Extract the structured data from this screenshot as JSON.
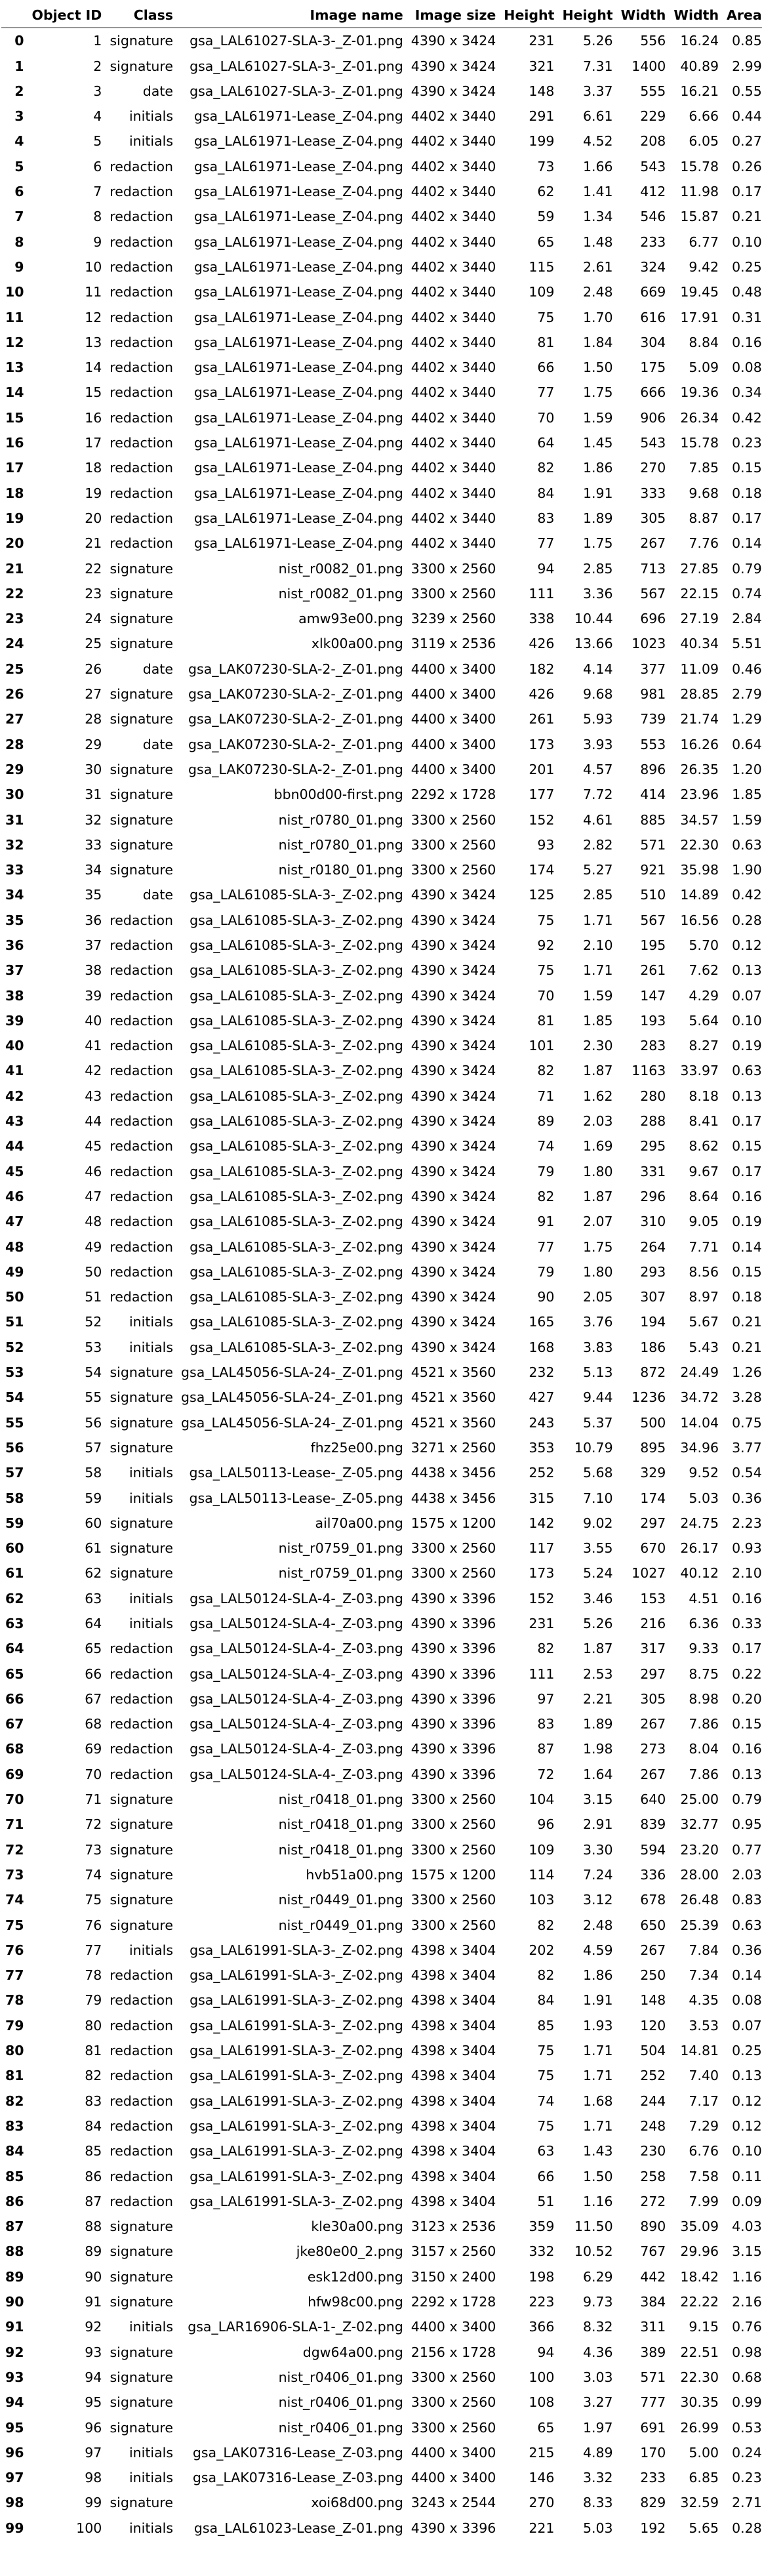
{
  "columns": [
    "Object ID",
    "Class",
    "Image name",
    "Image size",
    "Height",
    "Height",
    "Width",
    "Width",
    "Area"
  ],
  "rows": [
    [
      "0",
      "1",
      "signature",
      "gsa_LAL61027-SLA-3-_Z-01.png",
      "4390 x 3424",
      "231",
      "5.26",
      "556",
      "16.24",
      "0.85"
    ],
    [
      "1",
      "2",
      "signature",
      "gsa_LAL61027-SLA-3-_Z-01.png",
      "4390 x 3424",
      "321",
      "7.31",
      "1400",
      "40.89",
      "2.99"
    ],
    [
      "2",
      "3",
      "date",
      "gsa_LAL61027-SLA-3-_Z-01.png",
      "4390 x 3424",
      "148",
      "3.37",
      "555",
      "16.21",
      "0.55"
    ],
    [
      "3",
      "4",
      "initials",
      "gsa_LAL61971-Lease_Z-04.png",
      "4402 x 3440",
      "291",
      "6.61",
      "229",
      "6.66",
      "0.44"
    ],
    [
      "4",
      "5",
      "initials",
      "gsa_LAL61971-Lease_Z-04.png",
      "4402 x 3440",
      "199",
      "4.52",
      "208",
      "6.05",
      "0.27"
    ],
    [
      "5",
      "6",
      "redaction",
      "gsa_LAL61971-Lease_Z-04.png",
      "4402 x 3440",
      "73",
      "1.66",
      "543",
      "15.78",
      "0.26"
    ],
    [
      "6",
      "7",
      "redaction",
      "gsa_LAL61971-Lease_Z-04.png",
      "4402 x 3440",
      "62",
      "1.41",
      "412",
      "11.98",
      "0.17"
    ],
    [
      "7",
      "8",
      "redaction",
      "gsa_LAL61971-Lease_Z-04.png",
      "4402 x 3440",
      "59",
      "1.34",
      "546",
      "15.87",
      "0.21"
    ],
    [
      "8",
      "9",
      "redaction",
      "gsa_LAL61971-Lease_Z-04.png",
      "4402 x 3440",
      "65",
      "1.48",
      "233",
      "6.77",
      "0.10"
    ],
    [
      "9",
      "10",
      "redaction",
      "gsa_LAL61971-Lease_Z-04.png",
      "4402 x 3440",
      "115",
      "2.61",
      "324",
      "9.42",
      "0.25"
    ],
    [
      "10",
      "11",
      "redaction",
      "gsa_LAL61971-Lease_Z-04.png",
      "4402 x 3440",
      "109",
      "2.48",
      "669",
      "19.45",
      "0.48"
    ],
    [
      "11",
      "12",
      "redaction",
      "gsa_LAL61971-Lease_Z-04.png",
      "4402 x 3440",
      "75",
      "1.70",
      "616",
      "17.91",
      "0.31"
    ],
    [
      "12",
      "13",
      "redaction",
      "gsa_LAL61971-Lease_Z-04.png",
      "4402 x 3440",
      "81",
      "1.84",
      "304",
      "8.84",
      "0.16"
    ],
    [
      "13",
      "14",
      "redaction",
      "gsa_LAL61971-Lease_Z-04.png",
      "4402 x 3440",
      "66",
      "1.50",
      "175",
      "5.09",
      "0.08"
    ],
    [
      "14",
      "15",
      "redaction",
      "gsa_LAL61971-Lease_Z-04.png",
      "4402 x 3440",
      "77",
      "1.75",
      "666",
      "19.36",
      "0.34"
    ],
    [
      "15",
      "16",
      "redaction",
      "gsa_LAL61971-Lease_Z-04.png",
      "4402 x 3440",
      "70",
      "1.59",
      "906",
      "26.34",
      "0.42"
    ],
    [
      "16",
      "17",
      "redaction",
      "gsa_LAL61971-Lease_Z-04.png",
      "4402 x 3440",
      "64",
      "1.45",
      "543",
      "15.78",
      "0.23"
    ],
    [
      "17",
      "18",
      "redaction",
      "gsa_LAL61971-Lease_Z-04.png",
      "4402 x 3440",
      "82",
      "1.86",
      "270",
      "7.85",
      "0.15"
    ],
    [
      "18",
      "19",
      "redaction",
      "gsa_LAL61971-Lease_Z-04.png",
      "4402 x 3440",
      "84",
      "1.91",
      "333",
      "9.68",
      "0.18"
    ],
    [
      "19",
      "20",
      "redaction",
      "gsa_LAL61971-Lease_Z-04.png",
      "4402 x 3440",
      "83",
      "1.89",
      "305",
      "8.87",
      "0.17"
    ],
    [
      "20",
      "21",
      "redaction",
      "gsa_LAL61971-Lease_Z-04.png",
      "4402 x 3440",
      "77",
      "1.75",
      "267",
      "7.76",
      "0.14"
    ],
    [
      "21",
      "22",
      "signature",
      "nist_r0082_01.png",
      "3300 x 2560",
      "94",
      "2.85",
      "713",
      "27.85",
      "0.79"
    ],
    [
      "22",
      "23",
      "signature",
      "nist_r0082_01.png",
      "3300 x 2560",
      "111",
      "3.36",
      "567",
      "22.15",
      "0.74"
    ],
    [
      "23",
      "24",
      "signature",
      "amw93e00.png",
      "3239 x 2560",
      "338",
      "10.44",
      "696",
      "27.19",
      "2.84"
    ],
    [
      "24",
      "25",
      "signature",
      "xlk00a00.png",
      "3119 x 2536",
      "426",
      "13.66",
      "1023",
      "40.34",
      "5.51"
    ],
    [
      "25",
      "26",
      "date",
      "gsa_LAK07230-SLA-2-_Z-01.png",
      "4400 x 3400",
      "182",
      "4.14",
      "377",
      "11.09",
      "0.46"
    ],
    [
      "26",
      "27",
      "signature",
      "gsa_LAK07230-SLA-2-_Z-01.png",
      "4400 x 3400",
      "426",
      "9.68",
      "981",
      "28.85",
      "2.79"
    ],
    [
      "27",
      "28",
      "signature",
      "gsa_LAK07230-SLA-2-_Z-01.png",
      "4400 x 3400",
      "261",
      "5.93",
      "739",
      "21.74",
      "1.29"
    ],
    [
      "28",
      "29",
      "date",
      "gsa_LAK07230-SLA-2-_Z-01.png",
      "4400 x 3400",
      "173",
      "3.93",
      "553",
      "16.26",
      "0.64"
    ],
    [
      "29",
      "30",
      "signature",
      "gsa_LAK07230-SLA-2-_Z-01.png",
      "4400 x 3400",
      "201",
      "4.57",
      "896",
      "26.35",
      "1.20"
    ],
    [
      "30",
      "31",
      "signature",
      "bbn00d00-first.png",
      "2292 x 1728",
      "177",
      "7.72",
      "414",
      "23.96",
      "1.85"
    ],
    [
      "31",
      "32",
      "signature",
      "nist_r0780_01.png",
      "3300 x 2560",
      "152",
      "4.61",
      "885",
      "34.57",
      "1.59"
    ],
    [
      "32",
      "33",
      "signature",
      "nist_r0780_01.png",
      "3300 x 2560",
      "93",
      "2.82",
      "571",
      "22.30",
      "0.63"
    ],
    [
      "33",
      "34",
      "signature",
      "nist_r0180_01.png",
      "3300 x 2560",
      "174",
      "5.27",
      "921",
      "35.98",
      "1.90"
    ],
    [
      "34",
      "35",
      "date",
      "gsa_LAL61085-SLA-3-_Z-02.png",
      "4390 x 3424",
      "125",
      "2.85",
      "510",
      "14.89",
      "0.42"
    ],
    [
      "35",
      "36",
      "redaction",
      "gsa_LAL61085-SLA-3-_Z-02.png",
      "4390 x 3424",
      "75",
      "1.71",
      "567",
      "16.56",
      "0.28"
    ],
    [
      "36",
      "37",
      "redaction",
      "gsa_LAL61085-SLA-3-_Z-02.png",
      "4390 x 3424",
      "92",
      "2.10",
      "195",
      "5.70",
      "0.12"
    ],
    [
      "37",
      "38",
      "redaction",
      "gsa_LAL61085-SLA-3-_Z-02.png",
      "4390 x 3424",
      "75",
      "1.71",
      "261",
      "7.62",
      "0.13"
    ],
    [
      "38",
      "39",
      "redaction",
      "gsa_LAL61085-SLA-3-_Z-02.png",
      "4390 x 3424",
      "70",
      "1.59",
      "147",
      "4.29",
      "0.07"
    ],
    [
      "39",
      "40",
      "redaction",
      "gsa_LAL61085-SLA-3-_Z-02.png",
      "4390 x 3424",
      "81",
      "1.85",
      "193",
      "5.64",
      "0.10"
    ],
    [
      "40",
      "41",
      "redaction",
      "gsa_LAL61085-SLA-3-_Z-02.png",
      "4390 x 3424",
      "101",
      "2.30",
      "283",
      "8.27",
      "0.19"
    ],
    [
      "41",
      "42",
      "redaction",
      "gsa_LAL61085-SLA-3-_Z-02.png",
      "4390 x 3424",
      "82",
      "1.87",
      "1163",
      "33.97",
      "0.63"
    ],
    [
      "42",
      "43",
      "redaction",
      "gsa_LAL61085-SLA-3-_Z-02.png",
      "4390 x 3424",
      "71",
      "1.62",
      "280",
      "8.18",
      "0.13"
    ],
    [
      "43",
      "44",
      "redaction",
      "gsa_LAL61085-SLA-3-_Z-02.png",
      "4390 x 3424",
      "89",
      "2.03",
      "288",
      "8.41",
      "0.17"
    ],
    [
      "44",
      "45",
      "redaction",
      "gsa_LAL61085-SLA-3-_Z-02.png",
      "4390 x 3424",
      "74",
      "1.69",
      "295",
      "8.62",
      "0.15"
    ],
    [
      "45",
      "46",
      "redaction",
      "gsa_LAL61085-SLA-3-_Z-02.png",
      "4390 x 3424",
      "79",
      "1.80",
      "331",
      "9.67",
      "0.17"
    ],
    [
      "46",
      "47",
      "redaction",
      "gsa_LAL61085-SLA-3-_Z-02.png",
      "4390 x 3424",
      "82",
      "1.87",
      "296",
      "8.64",
      "0.16"
    ],
    [
      "47",
      "48",
      "redaction",
      "gsa_LAL61085-SLA-3-_Z-02.png",
      "4390 x 3424",
      "91",
      "2.07",
      "310",
      "9.05",
      "0.19"
    ],
    [
      "48",
      "49",
      "redaction",
      "gsa_LAL61085-SLA-3-_Z-02.png",
      "4390 x 3424",
      "77",
      "1.75",
      "264",
      "7.71",
      "0.14"
    ],
    [
      "49",
      "50",
      "redaction",
      "gsa_LAL61085-SLA-3-_Z-02.png",
      "4390 x 3424",
      "79",
      "1.80",
      "293",
      "8.56",
      "0.15"
    ],
    [
      "50",
      "51",
      "redaction",
      "gsa_LAL61085-SLA-3-_Z-02.png",
      "4390 x 3424",
      "90",
      "2.05",
      "307",
      "8.97",
      "0.18"
    ],
    [
      "51",
      "52",
      "initials",
      "gsa_LAL61085-SLA-3-_Z-02.png",
      "4390 x 3424",
      "165",
      "3.76",
      "194",
      "5.67",
      "0.21"
    ],
    [
      "52",
      "53",
      "initials",
      "gsa_LAL61085-SLA-3-_Z-02.png",
      "4390 x 3424",
      "168",
      "3.83",
      "186",
      "5.43",
      "0.21"
    ],
    [
      "53",
      "54",
      "signature",
      "gsa_LAL45056-SLA-24-_Z-01.png",
      "4521 x 3560",
      "232",
      "5.13",
      "872",
      "24.49",
      "1.26"
    ],
    [
      "54",
      "55",
      "signature",
      "gsa_LAL45056-SLA-24-_Z-01.png",
      "4521 x 3560",
      "427",
      "9.44",
      "1236",
      "34.72",
      "3.28"
    ],
    [
      "55",
      "56",
      "signature",
      "gsa_LAL45056-SLA-24-_Z-01.png",
      "4521 x 3560",
      "243",
      "5.37",
      "500",
      "14.04",
      "0.75"
    ],
    [
      "56",
      "57",
      "signature",
      "fhz25e00.png",
      "3271 x 2560",
      "353",
      "10.79",
      "895",
      "34.96",
      "3.77"
    ],
    [
      "57",
      "58",
      "initials",
      "gsa_LAL50113-Lease-_Z-05.png",
      "4438 x 3456",
      "252",
      "5.68",
      "329",
      "9.52",
      "0.54"
    ],
    [
      "58",
      "59",
      "initials",
      "gsa_LAL50113-Lease-_Z-05.png",
      "4438 x 3456",
      "315",
      "7.10",
      "174",
      "5.03",
      "0.36"
    ],
    [
      "59",
      "60",
      "signature",
      "ail70a00.png",
      "1575 x 1200",
      "142",
      "9.02",
      "297",
      "24.75",
      "2.23"
    ],
    [
      "60",
      "61",
      "signature",
      "nist_r0759_01.png",
      "3300 x 2560",
      "117",
      "3.55",
      "670",
      "26.17",
      "0.93"
    ],
    [
      "61",
      "62",
      "signature",
      "nist_r0759_01.png",
      "3300 x 2560",
      "173",
      "5.24",
      "1027",
      "40.12",
      "2.10"
    ],
    [
      "62",
      "63",
      "initials",
      "gsa_LAL50124-SLA-4-_Z-03.png",
      "4390 x 3396",
      "152",
      "3.46",
      "153",
      "4.51",
      "0.16"
    ],
    [
      "63",
      "64",
      "initials",
      "gsa_LAL50124-SLA-4-_Z-03.png",
      "4390 x 3396",
      "231",
      "5.26",
      "216",
      "6.36",
      "0.33"
    ],
    [
      "64",
      "65",
      "redaction",
      "gsa_LAL50124-SLA-4-_Z-03.png",
      "4390 x 3396",
      "82",
      "1.87",
      "317",
      "9.33",
      "0.17"
    ],
    [
      "65",
      "66",
      "redaction",
      "gsa_LAL50124-SLA-4-_Z-03.png",
      "4390 x 3396",
      "111",
      "2.53",
      "297",
      "8.75",
      "0.22"
    ],
    [
      "66",
      "67",
      "redaction",
      "gsa_LAL50124-SLA-4-_Z-03.png",
      "4390 x 3396",
      "97",
      "2.21",
      "305",
      "8.98",
      "0.20"
    ],
    [
      "67",
      "68",
      "redaction",
      "gsa_LAL50124-SLA-4-_Z-03.png",
      "4390 x 3396",
      "83",
      "1.89",
      "267",
      "7.86",
      "0.15"
    ],
    [
      "68",
      "69",
      "redaction",
      "gsa_LAL50124-SLA-4-_Z-03.png",
      "4390 x 3396",
      "87",
      "1.98",
      "273",
      "8.04",
      "0.16"
    ],
    [
      "69",
      "70",
      "redaction",
      "gsa_LAL50124-SLA-4-_Z-03.png",
      "4390 x 3396",
      "72",
      "1.64",
      "267",
      "7.86",
      "0.13"
    ],
    [
      "70",
      "71",
      "signature",
      "nist_r0418_01.png",
      "3300 x 2560",
      "104",
      "3.15",
      "640",
      "25.00",
      "0.79"
    ],
    [
      "71",
      "72",
      "signature",
      "nist_r0418_01.png",
      "3300 x 2560",
      "96",
      "2.91",
      "839",
      "32.77",
      "0.95"
    ],
    [
      "72",
      "73",
      "signature",
      "nist_r0418_01.png",
      "3300 x 2560",
      "109",
      "3.30",
      "594",
      "23.20",
      "0.77"
    ],
    [
      "73",
      "74",
      "signature",
      "hvb51a00.png",
      "1575 x 1200",
      "114",
      "7.24",
      "336",
      "28.00",
      "2.03"
    ],
    [
      "74",
      "75",
      "signature",
      "nist_r0449_01.png",
      "3300 x 2560",
      "103",
      "3.12",
      "678",
      "26.48",
      "0.83"
    ],
    [
      "75",
      "76",
      "signature",
      "nist_r0449_01.png",
      "3300 x 2560",
      "82",
      "2.48",
      "650",
      "25.39",
      "0.63"
    ],
    [
      "76",
      "77",
      "initials",
      "gsa_LAL61991-SLA-3-_Z-02.png",
      "4398 x 3404",
      "202",
      "4.59",
      "267",
      "7.84",
      "0.36"
    ],
    [
      "77",
      "78",
      "redaction",
      "gsa_LAL61991-SLA-3-_Z-02.png",
      "4398 x 3404",
      "82",
      "1.86",
      "250",
      "7.34",
      "0.14"
    ],
    [
      "78",
      "79",
      "redaction",
      "gsa_LAL61991-SLA-3-_Z-02.png",
      "4398 x 3404",
      "84",
      "1.91",
      "148",
      "4.35",
      "0.08"
    ],
    [
      "79",
      "80",
      "redaction",
      "gsa_LAL61991-SLA-3-_Z-02.png",
      "4398 x 3404",
      "85",
      "1.93",
      "120",
      "3.53",
      "0.07"
    ],
    [
      "80",
      "81",
      "redaction",
      "gsa_LAL61991-SLA-3-_Z-02.png",
      "4398 x 3404",
      "75",
      "1.71",
      "504",
      "14.81",
      "0.25"
    ],
    [
      "81",
      "82",
      "redaction",
      "gsa_LAL61991-SLA-3-_Z-02.png",
      "4398 x 3404",
      "75",
      "1.71",
      "252",
      "7.40",
      "0.13"
    ],
    [
      "82",
      "83",
      "redaction",
      "gsa_LAL61991-SLA-3-_Z-02.png",
      "4398 x 3404",
      "74",
      "1.68",
      "244",
      "7.17",
      "0.12"
    ],
    [
      "83",
      "84",
      "redaction",
      "gsa_LAL61991-SLA-3-_Z-02.png",
      "4398 x 3404",
      "75",
      "1.71",
      "248",
      "7.29",
      "0.12"
    ],
    [
      "84",
      "85",
      "redaction",
      "gsa_LAL61991-SLA-3-_Z-02.png",
      "4398 x 3404",
      "63",
      "1.43",
      "230",
      "6.76",
      "0.10"
    ],
    [
      "85",
      "86",
      "redaction",
      "gsa_LAL61991-SLA-3-_Z-02.png",
      "4398 x 3404",
      "66",
      "1.50",
      "258",
      "7.58",
      "0.11"
    ],
    [
      "86",
      "87",
      "redaction",
      "gsa_LAL61991-SLA-3-_Z-02.png",
      "4398 x 3404",
      "51",
      "1.16",
      "272",
      "7.99",
      "0.09"
    ],
    [
      "87",
      "88",
      "signature",
      "kle30a00.png",
      "3123 x 2536",
      "359",
      "11.50",
      "890",
      "35.09",
      "4.03"
    ],
    [
      "88",
      "89",
      "signature",
      "jke80e00_2.png",
      "3157 x 2560",
      "332",
      "10.52",
      "767",
      "29.96",
      "3.15"
    ],
    [
      "89",
      "90",
      "signature",
      "esk12d00.png",
      "3150 x 2400",
      "198",
      "6.29",
      "442",
      "18.42",
      "1.16"
    ],
    [
      "90",
      "91",
      "signature",
      "hfw98c00.png",
      "2292 x 1728",
      "223",
      "9.73",
      "384",
      "22.22",
      "2.16"
    ],
    [
      "91",
      "92",
      "initials",
      "gsa_LAR16906-SLA-1-_Z-02.png",
      "4400 x 3400",
      "366",
      "8.32",
      "311",
      "9.15",
      "0.76"
    ],
    [
      "92",
      "93",
      "signature",
      "dgw64a00.png",
      "2156 x 1728",
      "94",
      "4.36",
      "389",
      "22.51",
      "0.98"
    ],
    [
      "93",
      "94",
      "signature",
      "nist_r0406_01.png",
      "3300 x 2560",
      "100",
      "3.03",
      "571",
      "22.30",
      "0.68"
    ],
    [
      "94",
      "95",
      "signature",
      "nist_r0406_01.png",
      "3300 x 2560",
      "108",
      "3.27",
      "777",
      "30.35",
      "0.99"
    ],
    [
      "95",
      "96",
      "signature",
      "nist_r0406_01.png",
      "3300 x 2560",
      "65",
      "1.97",
      "691",
      "26.99",
      "0.53"
    ],
    [
      "96",
      "97",
      "initials",
      "gsa_LAK07316-Lease_Z-03.png",
      "4400 x 3400",
      "215",
      "4.89",
      "170",
      "5.00",
      "0.24"
    ],
    [
      "97",
      "98",
      "initials",
      "gsa_LAK07316-Lease_Z-03.png",
      "4400 x 3400",
      "146",
      "3.32",
      "233",
      "6.85",
      "0.23"
    ],
    [
      "98",
      "99",
      "signature",
      "xoi68d00.png",
      "3243 x 2544",
      "270",
      "8.33",
      "829",
      "32.59",
      "2.71"
    ],
    [
      "99",
      "100",
      "initials",
      "gsa_LAL61023-Lease_Z-01.png",
      "4390 x 3396",
      "221",
      "5.03",
      "192",
      "5.65",
      "0.28"
    ]
  ]
}
